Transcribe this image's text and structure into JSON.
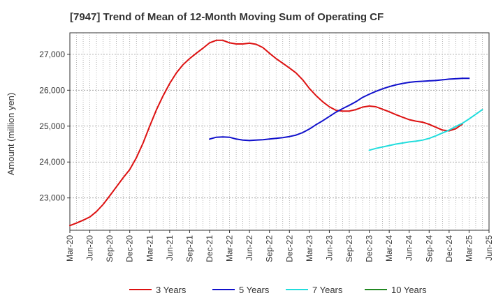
{
  "chart_data": {
    "type": "line",
    "title": "[7947]  Trend of Mean of 12-Month Moving Sum of Operating CF",
    "xlabel": "",
    "ylabel": "Amount (million yen)",
    "x_ticks": [
      "Mar-20",
      "Jun-20",
      "Sep-20",
      "Dec-20",
      "Mar-21",
      "Jun-21",
      "Sep-21",
      "Dec-21",
      "Mar-22",
      "Jun-22",
      "Sep-22",
      "Dec-22",
      "Mar-23",
      "Jun-23",
      "Sep-23",
      "Dec-23",
      "Mar-24",
      "Jun-24",
      "Sep-24",
      "Dec-24",
      "Mar-25",
      "Jun-25"
    ],
    "y_ticks": [
      23000,
      24000,
      25000,
      26000,
      27000
    ],
    "y_tick_labels": [
      "23,000",
      "24,000",
      "25,000",
      "26,000",
      "27,000"
    ],
    "ylim": [
      22100,
      27600
    ],
    "grid": true,
    "legend_position": "bottom",
    "colors": {
      "3y": "#dd1111",
      "5y": "#1111cc",
      "7y": "#22dddd",
      "10y": "#228822",
      "grid": "#999999",
      "axis": "#333333"
    },
    "series": [
      {
        "name": "3 Years",
        "key": "3y",
        "start_index": 0,
        "values": [
          22230,
          22300,
          22380,
          22470,
          22620,
          22820,
          23060,
          23310,
          23560,
          23790,
          24120,
          24530,
          25000,
          25450,
          25840,
          26190,
          26480,
          26710,
          26880,
          27030,
          27170,
          27320,
          27390,
          27390,
          27320,
          27290,
          27290,
          27310,
          27280,
          27190,
          27030,
          26880,
          26750,
          26620,
          26480,
          26290,
          26050,
          25850,
          25680,
          25540,
          25440,
          25420,
          25420,
          25460,
          25530,
          25560,
          25540,
          25470,
          25400,
          25320,
          25250,
          25180,
          25140,
          25110,
          25050,
          24970,
          24890,
          24870,
          24930,
          25060
        ]
      },
      {
        "name": "5 Years",
        "key": "5y",
        "start_index": 21,
        "values": [
          24640,
          24690,
          24700,
          24690,
          24640,
          24610,
          24600,
          24610,
          24620,
          24640,
          24660,
          24680,
          24710,
          24750,
          24820,
          24920,
          25040,
          25150,
          25270,
          25390,
          25490,
          25580,
          25680,
          25800,
          25890,
          25970,
          26040,
          26100,
          26150,
          26190,
          26220,
          26240,
          26250,
          26260,
          26270,
          26290,
          26310,
          26320,
          26330,
          26330
        ]
      },
      {
        "name": "7 Years",
        "key": "7y",
        "start_index": 45,
        "values": [
          24330,
          24380,
          24420,
          24460,
          24500,
          24530,
          24560,
          24580,
          24610,
          24660,
          24730,
          24810,
          24890,
          24990,
          25080,
          25200,
          25330,
          25460
        ]
      },
      {
        "name": "10 Years",
        "key": "10y",
        "start_index": 0,
        "values": []
      }
    ]
  }
}
